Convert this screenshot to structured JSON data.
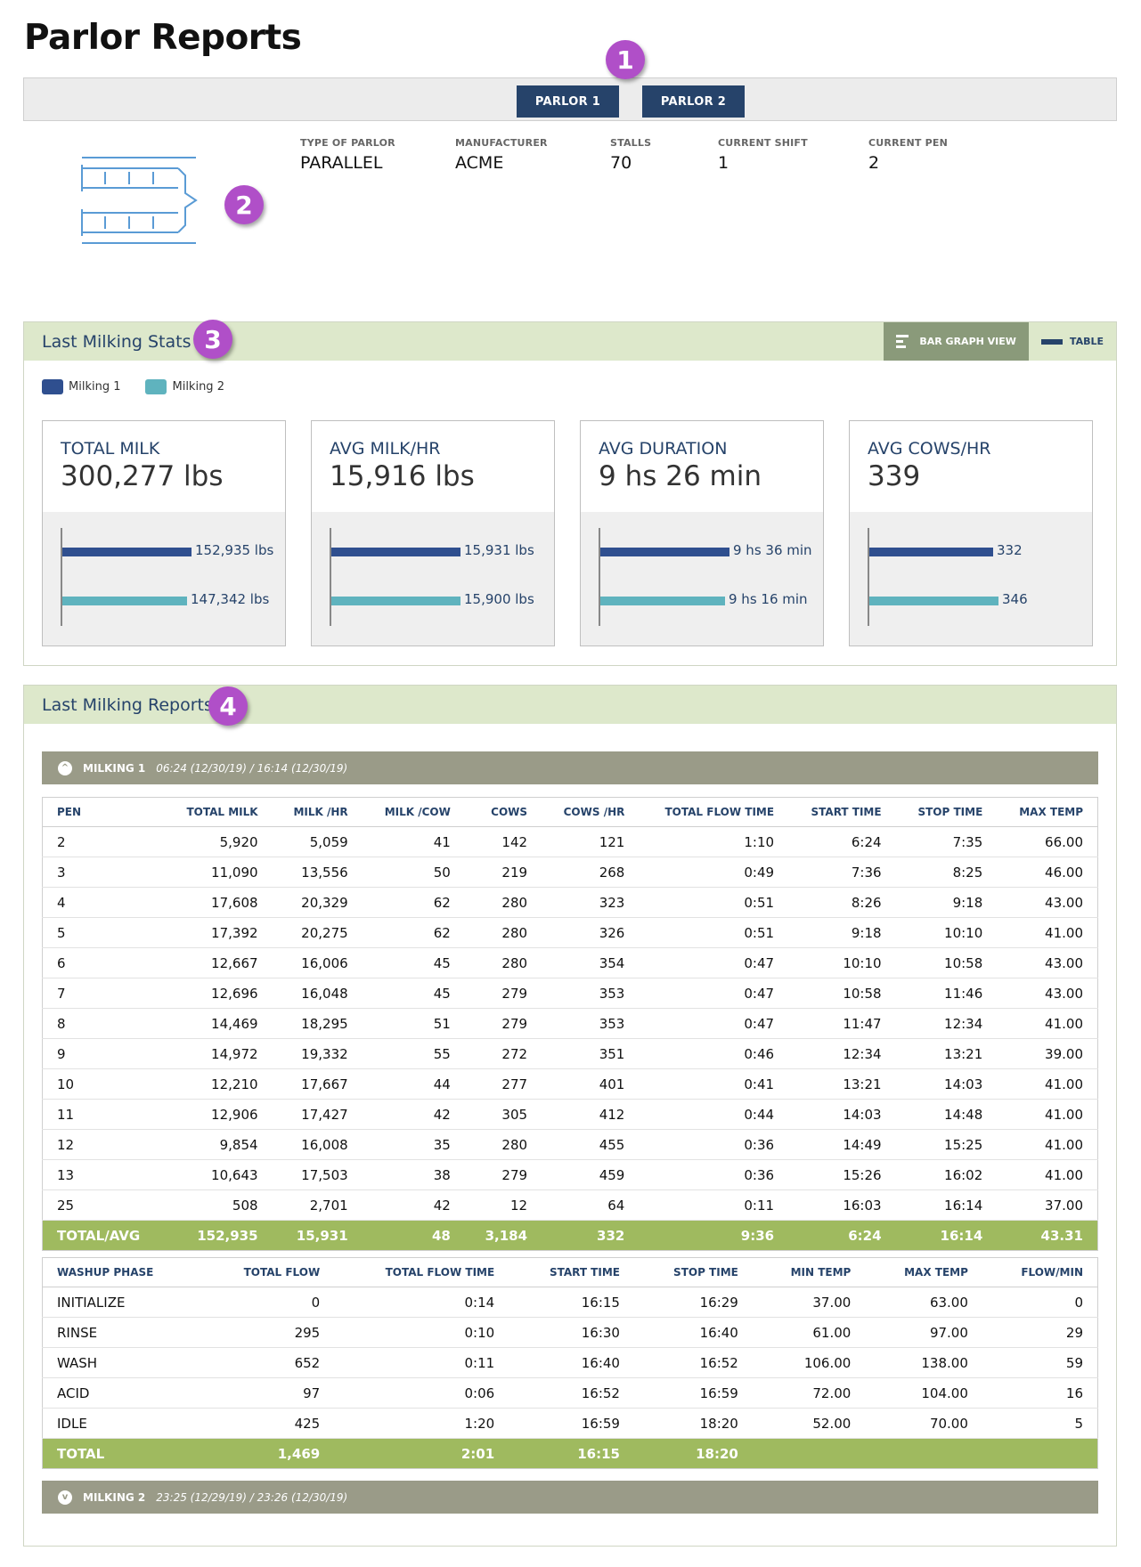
{
  "page_title": "Parlor Reports",
  "badges": [
    "1",
    "2",
    "3",
    "4"
  ],
  "parlor_tabs": [
    "PARLOR 1",
    "PARLOR 2"
  ],
  "parlor_info": [
    {
      "label": "TYPE OF PARLOR",
      "value": "PARALLEL"
    },
    {
      "label": "MANUFACTURER",
      "value": "ACME"
    },
    {
      "label": "STALLS",
      "value": "70"
    },
    {
      "label": "CURRENT SHIFT",
      "value": "1"
    },
    {
      "label": "CURRENT PEN",
      "value": "2"
    }
  ],
  "stats": {
    "title": "Last Milking Stats",
    "view_bar": "BAR GRAPH VIEW",
    "view_table": "TABLE",
    "legend": [
      {
        "name": "Milking 1",
        "color": "#2f4f8f"
      },
      {
        "name": "Milking 2",
        "color": "#5fb3be"
      }
    ],
    "cards": [
      {
        "label": "TOTAL MILK",
        "value": "300,277 lbs",
        "m1": "152,935 lbs",
        "m2": "147,342 lbs",
        "m1_frac": 1.0,
        "m2_frac": 0.963
      },
      {
        "label": "AVG MILK/HR",
        "value": "15,916 lbs",
        "m1": "15,931 lbs",
        "m2": "15,900 lbs",
        "m1_frac": 1.0,
        "m2_frac": 0.998
      },
      {
        "label": "AVG DURATION",
        "value": "9 hs 26 min",
        "m1": "9 hs 36 min",
        "m2": "9 hs 16 min",
        "m1_frac": 1.0,
        "m2_frac": 0.965
      },
      {
        "label": "AVG COWS/HR",
        "value": "339",
        "m1": "332",
        "m2": "346",
        "m1_frac": 0.96,
        "m2_frac": 1.0
      }
    ]
  },
  "reports": {
    "title": "Last Milking Reports",
    "milking1": {
      "name": "MILKING 1",
      "time": "06:24 (12/30/19) / 16:14 (12/30/19)",
      "chevron": "^"
    },
    "milking2": {
      "name": "MILKING 2",
      "time": "23:25 (12/29/19) / 23:26 (12/30/19)",
      "chevron": "v"
    },
    "pen_table": {
      "headers": [
        "PEN",
        "TOTAL MILK",
        "MILK /HR",
        "MILK /COW",
        "COWS",
        "COWS /HR",
        "TOTAL FLOW TIME",
        "START TIME",
        "STOP TIME",
        "MAX TEMP"
      ],
      "rows": [
        [
          "2",
          "5,920",
          "5,059",
          "41",
          "142",
          "121",
          "1:10",
          "6:24",
          "7:35",
          "66.00"
        ],
        [
          "3",
          "11,090",
          "13,556",
          "50",
          "219",
          "268",
          "0:49",
          "7:36",
          "8:25",
          "46.00"
        ],
        [
          "4",
          "17,608",
          "20,329",
          "62",
          "280",
          "323",
          "0:51",
          "8:26",
          "9:18",
          "43.00"
        ],
        [
          "5",
          "17,392",
          "20,275",
          "62",
          "280",
          "326",
          "0:51",
          "9:18",
          "10:10",
          "41.00"
        ],
        [
          "6",
          "12,667",
          "16,006",
          "45",
          "280",
          "354",
          "0:47",
          "10:10",
          "10:58",
          "43.00"
        ],
        [
          "7",
          "12,696",
          "16,048",
          "45",
          "279",
          "353",
          "0:47",
          "10:58",
          "11:46",
          "43.00"
        ],
        [
          "8",
          "14,469",
          "18,295",
          "51",
          "279",
          "353",
          "0:47",
          "11:47",
          "12:34",
          "41.00"
        ],
        [
          "9",
          "14,972",
          "19,332",
          "55",
          "272",
          "351",
          "0:46",
          "12:34",
          "13:21",
          "39.00"
        ],
        [
          "10",
          "12,210",
          "17,667",
          "44",
          "277",
          "401",
          "0:41",
          "13:21",
          "14:03",
          "41.00"
        ],
        [
          "11",
          "12,906",
          "17,427",
          "42",
          "305",
          "412",
          "0:44",
          "14:03",
          "14:48",
          "41.00"
        ],
        [
          "12",
          "9,854",
          "16,008",
          "35",
          "280",
          "455",
          "0:36",
          "14:49",
          "15:25",
          "41.00"
        ],
        [
          "13",
          "10,643",
          "17,503",
          "38",
          "279",
          "459",
          "0:36",
          "15:26",
          "16:02",
          "41.00"
        ],
        [
          "25",
          "508",
          "2,701",
          "42",
          "12",
          "64",
          "0:11",
          "16:03",
          "16:14",
          "37.00"
        ]
      ],
      "total": [
        "TOTAL/AVG",
        "152,935",
        "15,931",
        "48",
        "3,184",
        "332",
        "9:36",
        "6:24",
        "16:14",
        "43.31"
      ]
    },
    "washup_table": {
      "headers": [
        "WASHUP PHASE",
        "TOTAL FLOW",
        "TOTAL FLOW TIME",
        "START TIME",
        "STOP TIME",
        "MIN TEMP",
        "MAX TEMP",
        "FLOW/MIN"
      ],
      "rows": [
        [
          "INITIALIZE",
          "0",
          "0:14",
          "16:15",
          "16:29",
          "37.00",
          "63.00",
          "0"
        ],
        [
          "RINSE",
          "295",
          "0:10",
          "16:30",
          "16:40",
          "61.00",
          "97.00",
          "29"
        ],
        [
          "WASH",
          "652",
          "0:11",
          "16:40",
          "16:52",
          "106.00",
          "138.00",
          "59"
        ],
        [
          "ACID",
          "97",
          "0:06",
          "16:52",
          "16:59",
          "72.00",
          "104.00",
          "16"
        ],
        [
          "IDLE",
          "425",
          "1:20",
          "16:59",
          "18:20",
          "52.00",
          "70.00",
          "5"
        ]
      ],
      "total": [
        "TOTAL",
        "1,469",
        "2:01",
        "16:15",
        "18:20",
        "",
        "",
        ""
      ]
    }
  }
}
